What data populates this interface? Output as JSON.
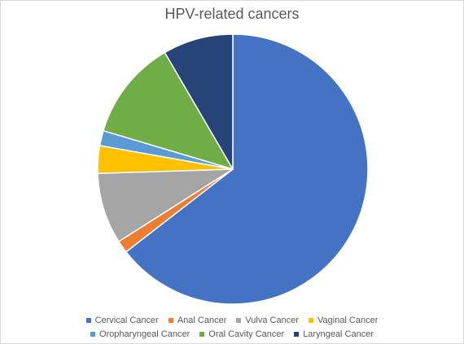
{
  "chart_data": {
    "type": "pie",
    "title": "HPV-related cancers",
    "categories": [
      "Cervical Cancer",
      "Anal Cancer",
      "Vulva Cancer",
      "Vaginal Cancer",
      "Oropharyngeal Cancer",
      "Oral Cavity Cancer",
      "Laryngeal Cancer"
    ],
    "values": [
      64.5,
      1.5,
      8.5,
      3.3,
      1.8,
      12.0,
      8.4
    ],
    "colors": [
      "#4472c4",
      "#ed7d31",
      "#a5a5a5",
      "#ffc000",
      "#5b9bd5",
      "#70ad47",
      "#264478"
    ],
    "start_angle_deg": 0,
    "direction": "clockwise",
    "legend_position": "bottom"
  }
}
